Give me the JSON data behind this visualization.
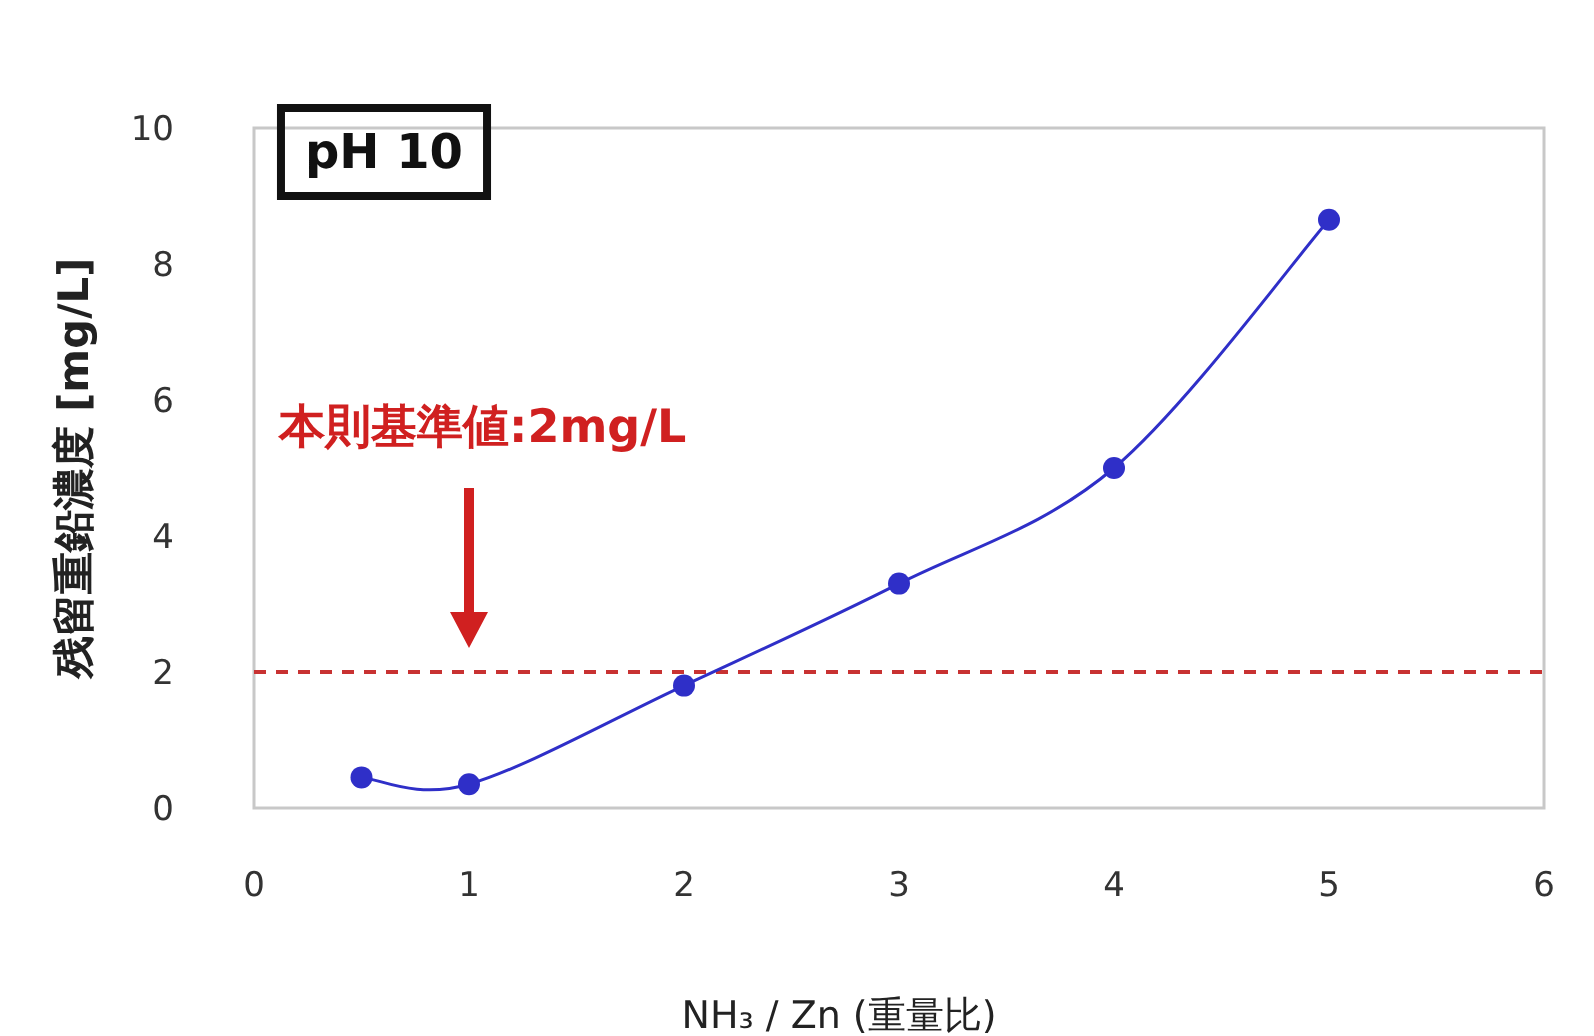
{
  "chart_data": {
    "type": "line",
    "xlabel": "NH₃ / Zn (重量比)",
    "ylabel": "残留重鉛濃度 [mg/L]",
    "x": [
      0.5,
      1,
      2,
      3,
      4,
      5
    ],
    "series": [
      {
        "color": "#2f2fc8",
        "values": [
          0.45,
          0.35,
          1.8,
          3.3,
          5.0,
          8.65
        ]
      }
    ],
    "marker": "circle",
    "xlim": [
      0,
      6
    ],
    "xticks": [
      0,
      1,
      2,
      3,
      4,
      5,
      6
    ],
    "ylim": [
      0,
      10
    ],
    "yticks": [
      0,
      2,
      4,
      6,
      8,
      10
    ],
    "ref_lines": [
      {
        "axis": "y",
        "value": 2,
        "color": "#c83232",
        "line_style": "dashed"
      }
    ],
    "annotations": [
      "pH 10",
      "本則基準値:2mg/L"
    ],
    "grid": false
  }
}
